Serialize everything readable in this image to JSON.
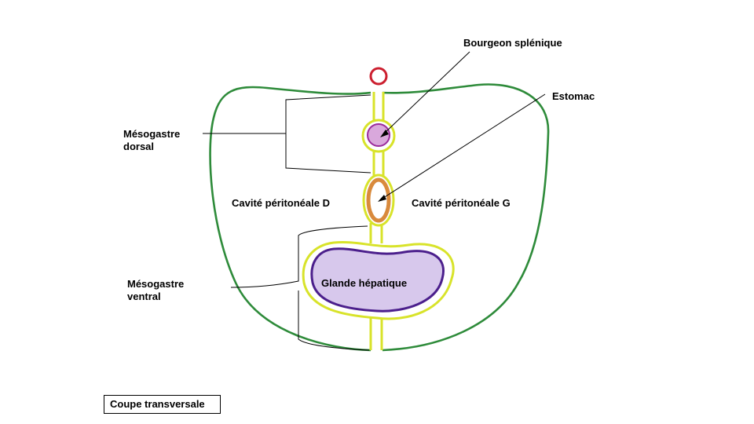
{
  "labels": {
    "bourgeon_splenique": "Bourgeon splénique",
    "estomac": "Estomac",
    "mesogastre_dorsal_line1": "Mésogastre",
    "mesogastre_dorsal_line2": "dorsal",
    "cavite_d": "Cavité péritonéale D",
    "cavite_g": "Cavité péritonéale G",
    "mesogastre_ventral_line1": "Mésogastre",
    "mesogastre_ventral_line2": "ventral",
    "glande_hepatique": "Glande hépatique",
    "caption": "Coupe transversale"
  },
  "colors": {
    "body_outline": "#2e8b3a",
    "mesentery": "#d8e32a",
    "aorta": "#cc1f2f",
    "spleen_fill": "#d9a8dc",
    "spleen_outline": "#9b2b9b",
    "stomach": "#d98a3c",
    "liver_fill": "#d7c8ec",
    "liver_outline": "#4b1f8c"
  }
}
